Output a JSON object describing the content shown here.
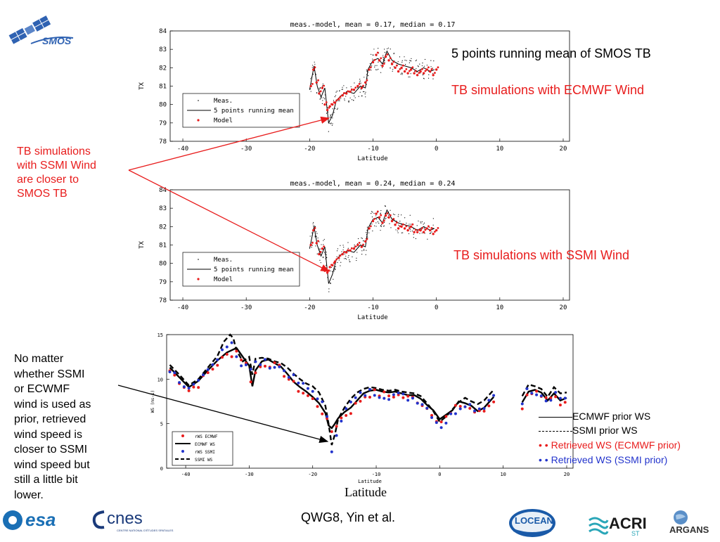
{
  "slide": {
    "annotations": {
      "tb_running_mean": "5 points running mean of SMOS TB",
      "tb_ecmwf": "TB simulations with ECMWF Wind",
      "tb_ssmi": "TB simulations with SSMI Wind",
      "closer_note": [
        "TB simulations",
        "with SSMI Wind",
        "are closer to",
        "SMOS TB"
      ],
      "ws_note": [
        "No matter",
        "whether SSMI",
        "or ECWMF",
        "wind is used as",
        "prior, retrieved",
        "wind speed is",
        "closer to SSMI",
        "wind speed but",
        "still a little bit",
        "lower."
      ]
    },
    "footer": "QWG8, Yin et al.",
    "logos": {
      "smos": "SMOS",
      "esa": "esa",
      "cnes": "cnes",
      "cnes_sub": "CENTRE NATIONAL D'ÉTUDES SPATIALES",
      "locean": "LOCEAN",
      "acri": "ACRI",
      "acri_sub": "ST",
      "argans": "ARGANS"
    },
    "ws_legend_outside": [
      {
        "label": "ECMWF prior WS",
        "style": "solid",
        "color": "#000000"
      },
      {
        "label": "SSMI prior WS",
        "style": "dashed",
        "color": "#000000"
      },
      {
        "label": "• Retrieved WS (ECMWF prior)",
        "style": "dot",
        "color": "#e81c1c"
      },
      {
        "label": "• Retrieved WS (SSMI prior)",
        "style": "dot",
        "color": "#2233cc"
      }
    ],
    "ws_xlabel_big": "Latitude",
    "colors": {
      "model": "#e81c1c",
      "ssmi_dot": "#2233cc",
      "arrow": "#e81c1c",
      "text_red": "#e81c1c"
    }
  },
  "chart_data": [
    {
      "type": "scatter",
      "title": "meas.-model, mean = 0.17, median = 0.17",
      "xlabel": "Latitude",
      "ylabel": "TX",
      "xlim": [
        -42,
        21
      ],
      "ylim": [
        78,
        84
      ],
      "xticks": [
        -40,
        -30,
        -20,
        -10,
        0,
        10,
        20
      ],
      "yticks": [
        78,
        79,
        80,
        81,
        82,
        83,
        84
      ],
      "legend": [
        "Meas.",
        "5 points running mean",
        "Model"
      ],
      "running_mean": {
        "x": [
          -20,
          -19.3,
          -18.8,
          -18.2,
          -17.6,
          -17,
          -16.4,
          -15.8,
          -15,
          -14,
          -13,
          -12,
          -11.2,
          -10.8,
          -10,
          -9.2,
          -8.5,
          -7.8,
          -7,
          -6,
          -5,
          -4,
          -3,
          -2,
          -1,
          -0.3
        ],
        "y": [
          80.8,
          82.1,
          81.0,
          80.4,
          80.9,
          79.0,
          79.4,
          80.2,
          80.5,
          80.7,
          80.6,
          81.0,
          80.9,
          81.9,
          82.4,
          82.5,
          82.2,
          82.9,
          82.4,
          82.2,
          82.1,
          82.0,
          81.8,
          82.0,
          81.8,
          81.9
        ]
      },
      "model_x": [
        -19.8,
        -19.4,
        -18.9,
        -18.5,
        -18,
        -17.6,
        -17.2,
        -16.8,
        -16.4,
        -16,
        -15.4,
        -14.8,
        -14.2,
        -13.6,
        -13,
        -12.4,
        -11.8,
        -11.2,
        -10.6,
        -10,
        -9.5,
        -9,
        -8.5,
        -8,
        -7.5,
        -7,
        -6.5,
        -6,
        -5.5,
        -5,
        -4.5,
        -4,
        -3.5,
        -3,
        -2.5,
        -2,
        -1.5,
        -1,
        -0.5,
        0
      ],
      "model_y": [
        81.0,
        81.9,
        81.2,
        80.6,
        80.9,
        80.0,
        79.7,
        79.9,
        80.0,
        80.1,
        80.3,
        80.5,
        80.6,
        80.7,
        80.8,
        81.0,
        80.9,
        81.2,
        81.9,
        82.3,
        82.7,
        82.4,
        82.1,
        82.6,
        82.4,
        82.2,
        82.0,
        81.8,
        82.0,
        81.8,
        81.7,
        81.9,
        81.7,
        81.6,
        81.8,
        81.7,
        81.9,
        81.8,
        81.6,
        81.9
      ]
    },
    {
      "type": "scatter",
      "title": "meas.-model, mean = 0.24, median = 0.24",
      "xlabel": "Latitude",
      "ylabel": "TX",
      "xlim": [
        -42,
        21
      ],
      "ylim": [
        78,
        84
      ],
      "xticks": [
        -40,
        -30,
        -20,
        -10,
        0,
        10,
        20
      ],
      "yticks": [
        78,
        79,
        80,
        81,
        82,
        83,
        84
      ],
      "legend": [
        "Meas.",
        "5 points running mean",
        "Model"
      ],
      "running_mean": {
        "x": [
          -20,
          -19.3,
          -18.8,
          -18.2,
          -17.6,
          -17,
          -16.4,
          -15.8,
          -15,
          -14,
          -13,
          -12,
          -11.2,
          -10.8,
          -10,
          -9.2,
          -8.5,
          -7.8,
          -7,
          -6,
          -5,
          -4,
          -3,
          -2,
          -1,
          -0.3
        ],
        "y": [
          80.8,
          82.0,
          81.0,
          80.4,
          80.9,
          78.9,
          79.4,
          80.2,
          80.5,
          80.7,
          80.6,
          81.0,
          80.9,
          81.9,
          82.4,
          82.5,
          82.2,
          82.9,
          82.4,
          82.2,
          82.1,
          82.0,
          81.8,
          82.0,
          81.8,
          81.9
        ]
      },
      "model_x": [
        -19.8,
        -19.4,
        -18.9,
        -18.5,
        -18,
        -17.6,
        -17.2,
        -16.8,
        -16.4,
        -16,
        -15.4,
        -14.8,
        -14.2,
        -13.6,
        -13,
        -12.4,
        -11.8,
        -11.2,
        -10.6,
        -10,
        -9.5,
        -9,
        -8.5,
        -8,
        -7.5,
        -7,
        -6.5,
        -6,
        -5.5,
        -5,
        -4.5,
        -4,
        -3.5,
        -3,
        -2.5,
        -2,
        -1.5,
        -1,
        -0.5,
        0
      ],
      "model_y": [
        81.0,
        81.8,
        81.1,
        80.5,
        80.8,
        79.6,
        79.5,
        79.8,
        79.9,
        80.1,
        80.3,
        80.5,
        80.6,
        80.7,
        80.8,
        81.0,
        80.9,
        81.2,
        81.9,
        82.3,
        82.7,
        82.5,
        82.2,
        82.6,
        82.5,
        82.3,
        82.1,
        81.9,
        82.0,
        81.9,
        81.8,
        82.0,
        81.7,
        81.7,
        81.8,
        81.7,
        81.9,
        81.8,
        81.6,
        81.8
      ]
    },
    {
      "type": "line",
      "xlabel": "Latitude",
      "ylabel": "WS (ms-1)",
      "xlim": [
        -43,
        21
      ],
      "ylim": [
        0,
        15
      ],
      "xticks": [
        -40,
        -30,
        -20,
        -10,
        0,
        10,
        20
      ],
      "yticks": [
        0,
        5,
        10,
        15
      ],
      "legend": [
        "rWS ECMWF",
        "ECMWF WS",
        "rWS SSMI",
        "SSMI WS"
      ],
      "series": [
        {
          "name": "ECMWF WS",
          "style": "solid",
          "x": [
            -42.5,
            -41,
            -39.5,
            -38,
            -36.5,
            -35,
            -33.5,
            -32,
            -31,
            -30,
            -29.5,
            -29,
            -28,
            -27,
            -26,
            -25,
            -24,
            -23,
            -22,
            -21,
            -20,
            -19,
            -18,
            -17.5,
            -17,
            -16.5,
            -16,
            -15,
            -14,
            -13,
            -12,
            -11,
            -10,
            -9,
            -8,
            -7,
            -6,
            -5,
            -4,
            -3,
            -2,
            -1,
            0,
            1,
            2,
            3,
            4,
            5,
            6,
            7,
            8.5
          ],
          "y": [
            11.3,
            10.2,
            9.1,
            9.8,
            11.0,
            12.1,
            13.0,
            13.5,
            12.5,
            11.5,
            9.2,
            11.0,
            12.0,
            12.2,
            11.8,
            11.4,
            10.6,
            9.7,
            9.1,
            8.6,
            8.0,
            7.3,
            6.2,
            4.8,
            4.5,
            5.0,
            5.6,
            6.3,
            6.8,
            7.6,
            8.4,
            8.7,
            8.8,
            8.6,
            8.5,
            8.6,
            8.4,
            8.2,
            8.2,
            7.8,
            7.1,
            6.5,
            5.5,
            6.0,
            6.5,
            7.5,
            7.3,
            7.0,
            6.4,
            6.8,
            8.0
          ]
        },
        {
          "name": "SSMI WS",
          "style": "dashed",
          "x": [
            -42.5,
            -41,
            -39.5,
            -38,
            -36.5,
            -35,
            -34,
            -33,
            -32.5,
            -32,
            -31,
            -30,
            -29.5,
            -29,
            -28,
            -27,
            -26,
            -25,
            -24,
            -23,
            -22,
            -21,
            -20,
            -19,
            -18,
            -17.5,
            -17,
            -16.5,
            -16,
            -15,
            -14,
            -13,
            -12,
            -11,
            -10,
            -9,
            -8,
            -7,
            -6,
            -5,
            -4,
            -3,
            -2,
            -1,
            0,
            1,
            2,
            3,
            4,
            5,
            6,
            7,
            8.5
          ],
          "y": [
            11.6,
            10.5,
            9.3,
            10.0,
            11.3,
            12.6,
            14.2,
            15.0,
            14.6,
            13.2,
            12.0,
            12.5,
            10.5,
            12.3,
            12.4,
            12.3,
            12.0,
            11.8,
            11.3,
            10.6,
            10.0,
            9.5,
            9.2,
            8.5,
            7.0,
            5.0,
            2.6,
            3.8,
            5.5,
            6.8,
            7.8,
            8.5,
            8.9,
            9.1,
            9.0,
            8.8,
            8.7,
            8.8,
            8.6,
            8.5,
            8.4,
            8.1,
            7.3,
            6.4,
            5.2,
            5.8,
            6.6,
            7.4,
            7.9,
            7.5,
            7.2,
            7.6,
            8.8
          ]
        },
        {
          "name": "ECMWF WS (north)",
          "style": "solid",
          "x": [
            13,
            14,
            15,
            16,
            17,
            18,
            19,
            20
          ],
          "y": [
            7.4,
            8.6,
            8.8,
            8.5,
            7.6,
            8.4,
            7.6,
            7.9
          ]
        },
        {
          "name": "SSMI WS (north)",
          "style": "dashed",
          "x": [
            13,
            14,
            15,
            16,
            17,
            18,
            19,
            20
          ],
          "y": [
            8.1,
            9.4,
            9.2,
            8.9,
            8.0,
            9.1,
            8.4,
            8.5
          ]
        }
      ]
    }
  ]
}
